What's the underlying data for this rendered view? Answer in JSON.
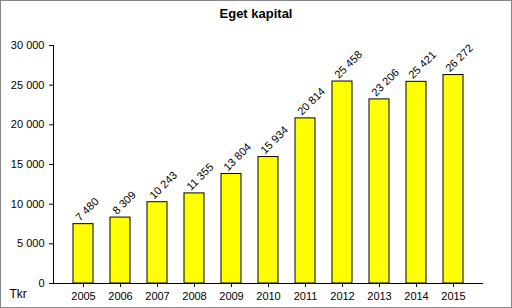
{
  "chart_data": {
    "type": "bar",
    "title": "Eget kapital",
    "y_label": "Tkr",
    "categories": [
      "2005",
      "2006",
      "2007",
      "2008",
      "2009",
      "2010",
      "2011",
      "2012",
      "2013",
      "2014",
      "2015"
    ],
    "values": [
      7480,
      8309,
      10243,
      11355,
      13804,
      15934,
      20814,
      25458,
      23206,
      25421,
      26272
    ],
    "value_labels": [
      "7 480",
      "8 309",
      "10 243",
      "11 355",
      "13 804",
      "15 934",
      "20 814",
      "25 458",
      "23 206",
      "25 421",
      "26 272"
    ],
    "data_labels": true,
    "color": "#ffff00",
    "ylim": [
      0,
      30000
    ],
    "yticks": [
      0,
      {
        "value": 5000,
        "label": "5 000"
      },
      {
        "value": 10000,
        "label": "10 000"
      },
      {
        "value": 15000,
        "label": "15 000"
      },
      {
        "value": 20000,
        "label": "20 000"
      },
      {
        "value": 25000,
        "label": "25 000"
      },
      {
        "value": 30000,
        "label": "30 000"
      }
    ],
    "grid": false
  }
}
